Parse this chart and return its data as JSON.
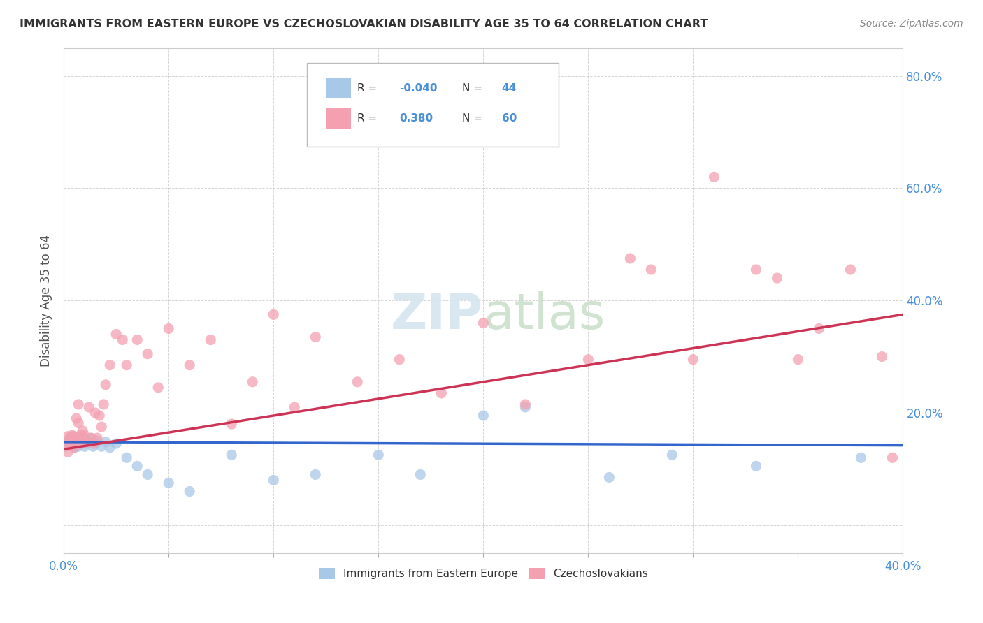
{
  "title": "IMMIGRANTS FROM EASTERN EUROPE VS CZECHOSLOVAKIAN DISABILITY AGE 35 TO 64 CORRELATION CHART",
  "source": "Source: ZipAtlas.com",
  "ylabel": "Disability Age 35 to 64",
  "xmin": 0.0,
  "xmax": 0.4,
  "ymin": -0.05,
  "ymax": 0.85,
  "blue_color": "#a8c8e8",
  "pink_color": "#f4a0b0",
  "blue_line_color": "#3366cc",
  "pink_line_color": "#cc3355",
  "watermark_color": "#d5e5f0",
  "background_color": "#ffffff",
  "grid_color": "#cccccc",
  "tick_color": "#4a90d9",
  "title_color": "#333333",
  "blue_R": "-0.040",
  "blue_N": "44",
  "pink_R": "0.380",
  "pink_N": "60",
  "legend_labels": [
    "Immigrants from Eastern Europe",
    "Czechoslovakians"
  ],
  "blue_line_y0": 0.148,
  "blue_line_y1": 0.142,
  "pink_line_y0": 0.135,
  "pink_line_y1": 0.375,
  "blue_points_x": [
    0.001,
    0.002,
    0.002,
    0.003,
    0.003,
    0.004,
    0.004,
    0.005,
    0.005,
    0.006,
    0.006,
    0.007,
    0.007,
    0.008,
    0.008,
    0.009,
    0.01,
    0.01,
    0.011,
    0.012,
    0.013,
    0.014,
    0.015,
    0.016,
    0.018,
    0.02,
    0.022,
    0.025,
    0.03,
    0.035,
    0.04,
    0.05,
    0.06,
    0.08,
    0.1,
    0.12,
    0.15,
    0.17,
    0.2,
    0.22,
    0.26,
    0.29,
    0.33,
    0.38
  ],
  "blue_points_y": [
    0.14,
    0.15,
    0.145,
    0.155,
    0.148,
    0.142,
    0.158,
    0.138,
    0.152,
    0.145,
    0.148,
    0.155,
    0.14,
    0.145,
    0.15,
    0.148,
    0.14,
    0.155,
    0.145,
    0.148,
    0.155,
    0.14,
    0.145,
    0.15,
    0.14,
    0.148,
    0.138,
    0.145,
    0.12,
    0.105,
    0.09,
    0.075,
    0.06,
    0.125,
    0.08,
    0.09,
    0.125,
    0.09,
    0.195,
    0.21,
    0.085,
    0.125,
    0.105,
    0.12
  ],
  "pink_points_x": [
    0.001,
    0.002,
    0.002,
    0.003,
    0.003,
    0.004,
    0.004,
    0.005,
    0.005,
    0.006,
    0.006,
    0.007,
    0.007,
    0.008,
    0.008,
    0.009,
    0.01,
    0.01,
    0.011,
    0.012,
    0.013,
    0.014,
    0.015,
    0.016,
    0.017,
    0.018,
    0.019,
    0.02,
    0.022,
    0.025,
    0.028,
    0.03,
    0.035,
    0.04,
    0.045,
    0.05,
    0.06,
    0.07,
    0.08,
    0.09,
    0.1,
    0.11,
    0.12,
    0.14,
    0.16,
    0.18,
    0.2,
    0.22,
    0.25,
    0.27,
    0.28,
    0.3,
    0.31,
    0.33,
    0.34,
    0.35,
    0.36,
    0.375,
    0.39,
    0.395
  ],
  "pink_points_y": [
    0.145,
    0.158,
    0.13,
    0.145,
    0.155,
    0.16,
    0.148,
    0.158,
    0.138,
    0.148,
    0.19,
    0.215,
    0.182,
    0.16,
    0.145,
    0.168,
    0.148,
    0.16,
    0.148,
    0.21,
    0.155,
    0.145,
    0.2,
    0.155,
    0.195,
    0.175,
    0.215,
    0.25,
    0.285,
    0.34,
    0.33,
    0.285,
    0.33,
    0.305,
    0.245,
    0.35,
    0.285,
    0.33,
    0.18,
    0.255,
    0.375,
    0.21,
    0.335,
    0.255,
    0.295,
    0.235,
    0.36,
    0.215,
    0.295,
    0.475,
    0.455,
    0.295,
    0.62,
    0.455,
    0.44,
    0.295,
    0.35,
    0.455,
    0.3,
    0.12
  ]
}
